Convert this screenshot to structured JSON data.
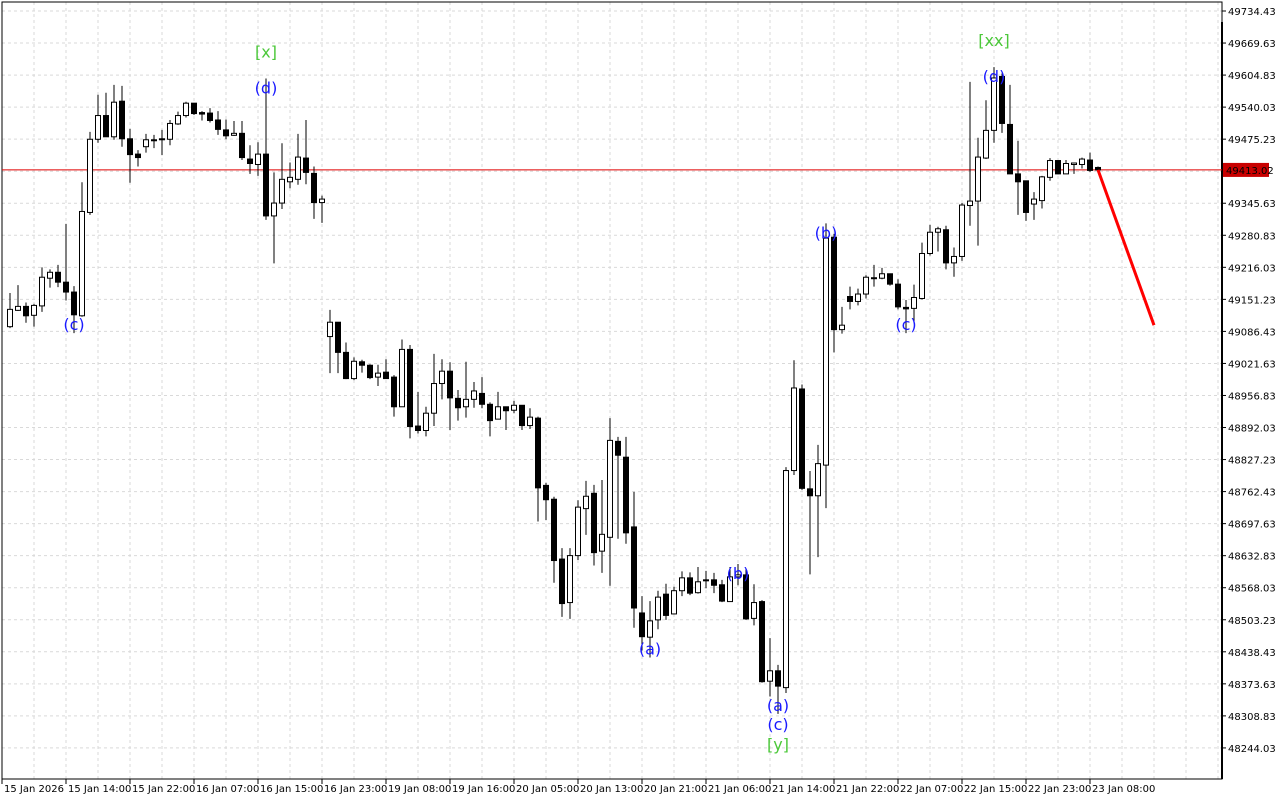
{
  "chart_data": {
    "type": "candlestick",
    "timeframe_note": "",
    "colors": {
      "bull_body": "#ffffff",
      "bear_body": "#000000",
      "outline": "#000000",
      "grid": "#d9d9d9",
      "current_price_line": "#e00000",
      "current_price_box": "#c80000",
      "forecast_line": "#ff0000",
      "wave_minor": "#1a1aff",
      "wave_major": "#4cc83a"
    },
    "grid": true,
    "ylim": [
      48211.63,
      49766.83
    ],
    "y_ticks": [
      "49734.43",
      "49669.63",
      "49604.83",
      "49540.03",
      "49475.23",
      "49345.63",
      "49280.83",
      "49216.03",
      "49151.23",
      "49086.43",
      "49021.63",
      "48956.83",
      "48892.03",
      "48827.23",
      "48762.43",
      "48697.63",
      "48632.83",
      "48568.03",
      "48503.23",
      "48438.43",
      "48373.63",
      "48308.83",
      "48244.03"
    ],
    "x_ticks": [
      "15 Jan 2026",
      "15 Jan 14:00",
      "15 Jan 22:00",
      "16 Jan 07:00",
      "16 Jan 15:00",
      "16 Jan 23:00",
      "19 Jan 08:00",
      "19 Jan 16:00",
      "20 Jan 05:00",
      "20 Jan 13:00",
      "20 Jan 21:00",
      "21 Jan 06:00",
      "21 Jan 14:00",
      "21 Jan 22:00",
      "22 Jan 07:00",
      "22 Jan 15:00",
      "22 Jan 23:00",
      "23 Jan 08:00"
    ],
    "current_price": "49413.02",
    "ohlc": [
      [
        49096,
        49164,
        49093,
        49131
      ],
      [
        49129,
        49180,
        49128,
        49137
      ],
      [
        49137,
        49145,
        49104,
        49118
      ],
      [
        49119,
        49142,
        49096,
        49139
      ],
      [
        49138,
        49216,
        49126,
        49196
      ],
      [
        49194,
        49212,
        49175,
        49206
      ],
      [
        49206,
        49221,
        49176,
        49186
      ],
      [
        49186,
        49304,
        49149,
        49166
      ],
      [
        49166,
        49178,
        49083,
        49120
      ],
      [
        49118,
        49388,
        49116,
        49329
      ],
      [
        49327,
        49490,
        49322,
        49475
      ],
      [
        49475,
        49565,
        49468,
        49523
      ],
      [
        49523,
        49569,
        49480,
        49480
      ],
      [
        49480,
        49585,
        49474,
        49550
      ],
      [
        49552,
        49583,
        49460,
        49476
      ],
      [
        49476,
        49496,
        49387,
        49444
      ],
      [
        49445,
        49453,
        49420,
        49438
      ],
      [
        49460,
        49486,
        49448,
        49474
      ],
      [
        49472,
        49484,
        49457,
        49474
      ],
      [
        49474,
        49494,
        49443,
        49476
      ],
      [
        49475,
        49514,
        49463,
        49507
      ],
      [
        49506,
        49531,
        49504,
        49523
      ],
      [
        49523,
        49551,
        49519,
        49548
      ],
      [
        49548,
        49548,
        49524,
        49527
      ],
      [
        49529,
        49532,
        49513,
        49526
      ],
      [
        49528,
        49538,
        49509,
        49513
      ],
      [
        49514,
        49532,
        49484,
        49495
      ],
      [
        49494,
        49515,
        49475,
        49482
      ],
      [
        49483,
        49512,
        49482,
        49487
      ],
      [
        49487,
        49512,
        49433,
        49438
      ],
      [
        49435,
        49463,
        49405,
        49426
      ],
      [
        49424,
        49469,
        49401,
        49445
      ],
      [
        49445,
        49598,
        49312,
        49320
      ],
      [
        49320,
        49408,
        49224,
        49346
      ],
      [
        49346,
        49467,
        49334,
        49394
      ],
      [
        49389,
        49428,
        49376,
        49398
      ],
      [
        49394,
        49486,
        49383,
        49439
      ],
      [
        49437,
        49514,
        49384,
        49408
      ],
      [
        49406,
        49420,
        49314,
        49347
      ],
      [
        49347,
        49361,
        49306,
        49354
      ],
      [
        49076,
        49130,
        49002,
        49105
      ],
      [
        49105,
        49105,
        49002,
        49044
      ],
      [
        49044,
        49064,
        48990,
        48991
      ],
      [
        48991,
        49034,
        48988,
        49026
      ],
      [
        49025,
        49029,
        49003,
        49018
      ],
      [
        49018,
        49020,
        48990,
        48993
      ],
      [
        48994,
        49019,
        48976,
        49002
      ],
      [
        49004,
        49030,
        48991,
        48991
      ],
      [
        48994,
        48998,
        48914,
        48934
      ],
      [
        48934,
        49070,
        48934,
        49050
      ],
      [
        49050,
        49059,
        48870,
        48894
      ],
      [
        48895,
        48964,
        48880,
        48886
      ],
      [
        48886,
        48934,
        48874,
        48921
      ],
      [
        48921,
        49041,
        48895,
        48981
      ],
      [
        48981,
        49030,
        48949,
        49006
      ],
      [
        49006,
        49024,
        48887,
        48952
      ],
      [
        48951,
        48968,
        48906,
        48932
      ],
      [
        48934,
        49025,
        48912,
        48949
      ],
      [
        48949,
        48984,
        48932,
        48966
      ],
      [
        48961,
        48994,
        48931,
        48939
      ],
      [
        48939,
        48943,
        48874,
        48906
      ],
      [
        48909,
        48964,
        48909,
        48934
      ],
      [
        48934,
        48934,
        48887,
        48926
      ],
      [
        48927,
        48946,
        48921,
        48937
      ],
      [
        48937,
        48937,
        48887,
        48896
      ],
      [
        48896,
        48931,
        48889,
        48913
      ],
      [
        48911,
        48914,
        48702,
        48770
      ],
      [
        48775,
        48780,
        48705,
        48746
      ],
      [
        48747,
        48752,
        48578,
        48623
      ],
      [
        48626,
        48648,
        48509,
        48536
      ],
      [
        48538,
        48648,
        48505,
        48633
      ],
      [
        48633,
        48745,
        48624,
        48731
      ],
      [
        48728,
        48784,
        48675,
        48753
      ],
      [
        48759,
        48776,
        48613,
        48639
      ],
      [
        48642,
        48786,
        48598,
        48676
      ],
      [
        48670,
        48911,
        48572,
        48866
      ],
      [
        48864,
        48873,
        48667,
        48836
      ],
      [
        48832,
        48873,
        48657,
        48679
      ],
      [
        48691,
        48762,
        48487,
        48527
      ],
      [
        48517,
        48551,
        48441,
        48469
      ],
      [
        48468,
        48541,
        48427,
        48501
      ],
      [
        48503,
        48562,
        48484,
        48549
      ],
      [
        48555,
        48576,
        48503,
        48512
      ],
      [
        48515,
        48570,
        48514,
        48562
      ],
      [
        48562,
        48601,
        48551,
        48588
      ],
      [
        48588,
        48599,
        48553,
        48557
      ],
      [
        48558,
        48610,
        48556,
        48580
      ],
      [
        48582,
        48602,
        48567,
        48584
      ],
      [
        48584,
        48598,
        48557,
        48573
      ],
      [
        48574,
        48584,
        48539,
        48541
      ],
      [
        48540,
        48610,
        48540,
        48590
      ],
      [
        48590,
        48616,
        48573,
        48594
      ],
      [
        48594,
        48606,
        48503,
        48505
      ],
      [
        48506,
        48575,
        48492,
        48538
      ],
      [
        48540,
        48543,
        48376,
        48378
      ],
      [
        48379,
        48466,
        48348,
        48400
      ],
      [
        48400,
        48412,
        48313,
        48369
      ],
      [
        48366,
        48812,
        48355,
        48805
      ],
      [
        48805,
        49028,
        48796,
        48972
      ],
      [
        48970,
        48979,
        48766,
        48769
      ],
      [
        48768,
        48804,
        48595,
        48754
      ],
      [
        48754,
        48857,
        48630,
        48819
      ],
      [
        48816,
        49305,
        48729,
        49275
      ],
      [
        49277,
        49284,
        49044,
        49090
      ],
      [
        49090,
        49136,
        49082,
        49099
      ],
      [
        49157,
        49177,
        49131,
        49147
      ],
      [
        49147,
        49173,
        49139,
        49162
      ],
      [
        49162,
        49200,
        49153,
        49196
      ],
      [
        49194,
        49221,
        49177,
        49195
      ],
      [
        49194,
        49215,
        49192,
        49203
      ],
      [
        49203,
        49203,
        49179,
        49182
      ],
      [
        49182,
        49192,
        49131,
        49136
      ],
      [
        49135,
        49150,
        49083,
        49132
      ],
      [
        49133,
        49181,
        49103,
        49155
      ],
      [
        49153,
        49266,
        49151,
        49244
      ],
      [
        49244,
        49302,
        49240,
        49287
      ],
      [
        49287,
        49298,
        49248,
        49294
      ],
      [
        49292,
        49300,
        49212,
        49225
      ],
      [
        49225,
        49256,
        49197,
        49238
      ],
      [
        49238,
        49346,
        49229,
        49342
      ],
      [
        49341,
        49591,
        49300,
        49350
      ],
      [
        49350,
        49478,
        49260,
        49439
      ],
      [
        49437,
        49554,
        49435,
        49493
      ],
      [
        49493,
        49621,
        49468,
        49599
      ],
      [
        49602,
        49608,
        49488,
        49507
      ],
      [
        49505,
        49585,
        49405,
        49405
      ],
      [
        49405,
        49472,
        49322,
        49389
      ],
      [
        49391,
        49391,
        49310,
        49327
      ],
      [
        49344,
        49368,
        49312,
        49354
      ],
      [
        49351,
        49401,
        49335,
        49399
      ],
      [
        49398,
        49437,
        49391,
        49432
      ],
      [
        49432,
        49432,
        49404,
        49405
      ],
      [
        49405,
        49433,
        49405,
        49426
      ],
      [
        49424,
        49428,
        49405,
        49427
      ],
      [
        49424,
        49438,
        49416,
        49435
      ],
      [
        49433,
        49448,
        49409,
        49412
      ],
      [
        49418,
        49420,
        49412,
        49413
      ]
    ],
    "wave_labels": [
      {
        "text": "(c)",
        "bar": 8,
        "side": "below",
        "stack": 0,
        "level": "minor"
      },
      {
        "text": "(d)",
        "bar": 32,
        "side": "above",
        "stack": 0,
        "level": "minor"
      },
      {
        "text": "[x]",
        "bar": 32,
        "side": "above",
        "stack": 1,
        "level": "major"
      },
      {
        "text": "(a)",
        "bar": 80,
        "side": "below",
        "stack": 0,
        "level": "minor"
      },
      {
        "text": "(b)",
        "bar": 91,
        "side": "above",
        "stack": 0,
        "level": "minor"
      },
      {
        "text": "(a)",
        "bar": 96,
        "side": "below",
        "stack": 0,
        "level": "minor"
      },
      {
        "text": "(c)",
        "bar": 96,
        "side": "below",
        "stack": 1,
        "level": "minor"
      },
      {
        "text": "[y]",
        "bar": 96,
        "side": "below",
        "stack": 2,
        "level": "major"
      },
      {
        "text": "(b)",
        "bar": 102,
        "side": "above",
        "stack": 0,
        "level": "minor"
      },
      {
        "text": "(c)",
        "bar": 112,
        "side": "below",
        "stack": 0,
        "level": "minor"
      },
      {
        "text": "(d)",
        "bar": 123,
        "side": "above",
        "stack": 0,
        "level": "minor"
      },
      {
        "text": "[xx]",
        "bar": 123,
        "side": "above",
        "stack": 1,
        "level": "major"
      }
    ],
    "forecast": {
      "from_bar": 136,
      "from_price": 49413.02,
      "to_bar": 143,
      "to_price": 49099
    }
  }
}
